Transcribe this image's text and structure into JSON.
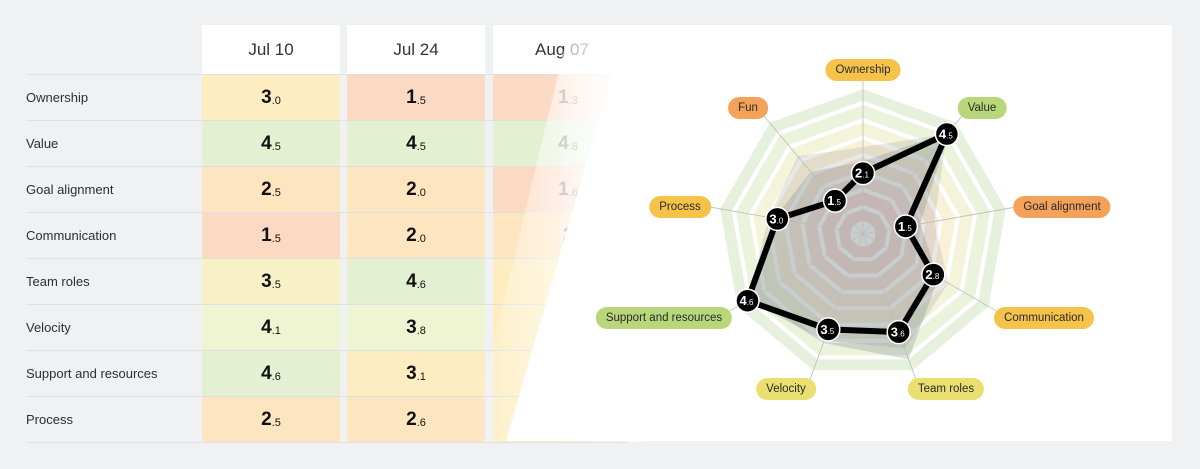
{
  "table": {
    "columns": [
      "Jul 10",
      "Jul 24",
      "Aug 07"
    ],
    "rows": [
      {
        "label": "Ownership",
        "values": [
          "3.0",
          "1.5",
          "1.3"
        ]
      },
      {
        "label": "Value",
        "values": [
          "4.5",
          "4.5",
          "4.8"
        ]
      },
      {
        "label": "Goal alignment",
        "values": [
          "2.5",
          "2.0",
          "1.6"
        ]
      },
      {
        "label": "Communication",
        "values": [
          "1.5",
          "2.0",
          "2"
        ]
      },
      {
        "label": "Team roles",
        "values": [
          "3.5",
          "4.6",
          ""
        ]
      },
      {
        "label": "Velocity",
        "values": [
          "4.1",
          "3.8",
          ""
        ]
      },
      {
        "label": "Support and resources",
        "values": [
          "4.6",
          "3.1",
          ""
        ]
      },
      {
        "label": "Process",
        "values": [
          "2.5",
          "2.6",
          ""
        ]
      }
    ]
  },
  "colors": {
    "background": "#eff1f2",
    "score_low": "#fcd9c2",
    "score_midlow": "#fde5c0",
    "score_mid": "#fdedc1",
    "score_midhigh": "#f8f1c8",
    "score_high": "#eff4d2",
    "score_top": "#e4f0d2",
    "tag_orange": "#f4a25a",
    "tag_amber": "#f6c34a",
    "tag_yellow": "#e9e070",
    "tag_green": "#b9d67a",
    "series_line": "#000000"
  },
  "chart_data": {
    "type": "radar",
    "title": "",
    "scale_max": 5,
    "axes": [
      "Ownership",
      "Value",
      "Goal alignment",
      "Communication",
      "Team roles",
      "Velocity",
      "Support and resources",
      "Process",
      "Fun"
    ],
    "axis_tag_colors": [
      "#f6c34a",
      "#b9d67a",
      "#f4a25a",
      "#f6c34a",
      "#e9e070",
      "#e9e070",
      "#b9d67a",
      "#f6c34a",
      "#f4a25a"
    ],
    "series": [
      {
        "name": "current",
        "values": [
          2.1,
          4.5,
          1.5,
          2.8,
          3.6,
          3.5,
          4.6,
          3.0,
          1.5
        ],
        "labels": [
          "2.1",
          "4.5",
          "1.5",
          "2.8",
          "3.6",
          "3.5",
          "4.6",
          "3.0",
          "1.5"
        ]
      },
      {
        "name": "previous-shadow-1",
        "values": [
          3.0,
          4.5,
          2.5,
          3.4,
          4.2,
          3.9,
          4.6,
          3.3,
          3.5
        ]
      },
      {
        "name": "previous-shadow-2",
        "values": [
          2.5,
          4.6,
          2.0,
          3.0,
          4.6,
          4.0,
          4.4,
          3.1,
          2.8
        ]
      }
    ]
  }
}
